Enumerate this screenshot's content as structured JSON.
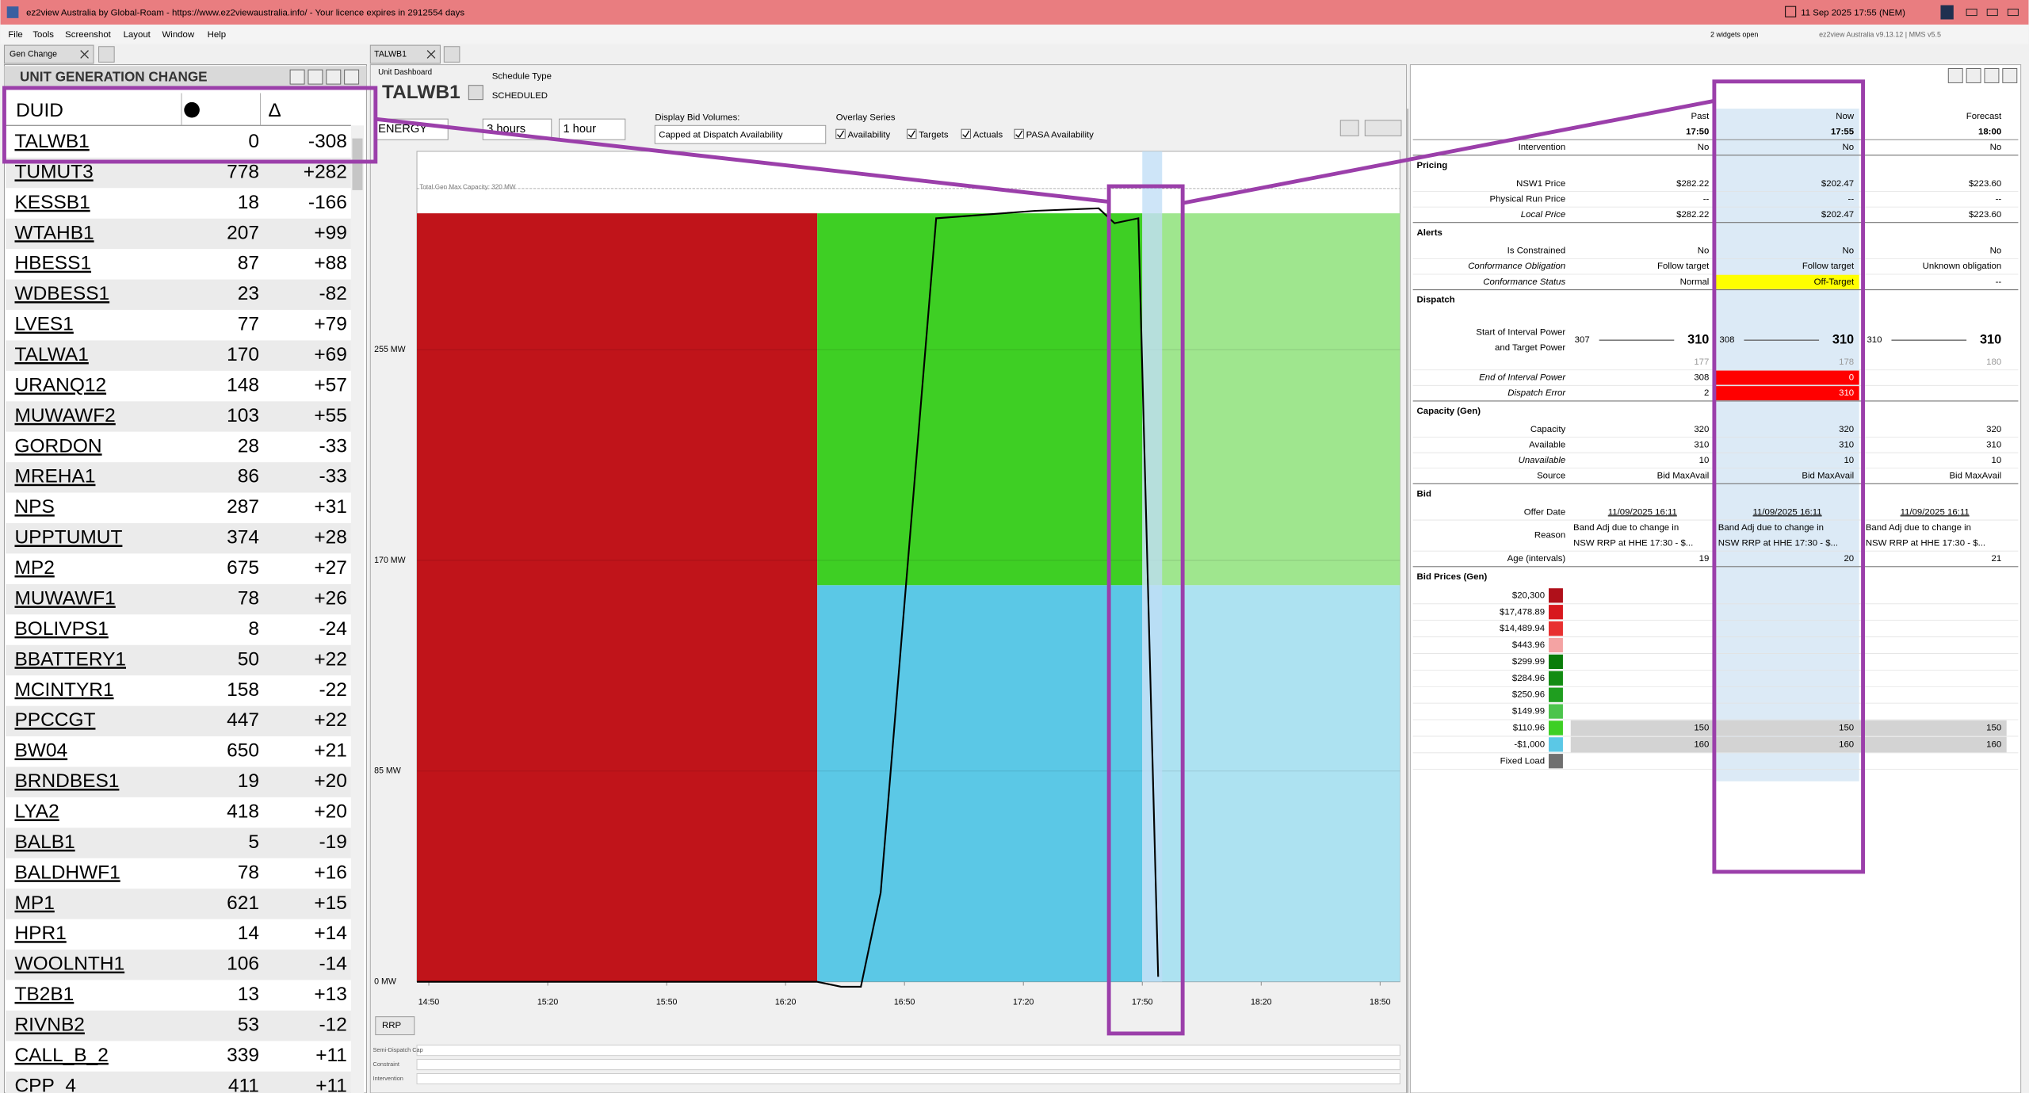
{
  "title_bar": {
    "title": "ez2view Australia by Global-Roam - https://www.ez2viewaustralia.info/ - Your licence expires in 2912554 days",
    "datetime": "11 Sep 2025 17:55 (NEM)"
  },
  "menu": [
    "File",
    "Tools",
    "Screenshot",
    "Layout",
    "Window",
    "Help"
  ],
  "status": {
    "widgets": "2 widgets open",
    "version": "ez2view Australia v9.13.12 | MMS v5.5"
  },
  "tabs": {
    "left": "Gen Change",
    "middle": "TALWB1"
  },
  "gen_change": {
    "title": "UNIT GENERATION CHANGE",
    "headers": [
      "DUID",
      "Δ"
    ],
    "rows": [
      [
        "TALWB1",
        0,
        "-308"
      ],
      [
        "TUMUT3",
        778,
        "+282"
      ],
      [
        "KESSB1",
        18,
        "-166"
      ],
      [
        "WTAHB1",
        207,
        "+99"
      ],
      [
        "HBESS1",
        87,
        "+88"
      ],
      [
        "WDBESS1",
        23,
        "-82"
      ],
      [
        "LVES1",
        77,
        "+79"
      ],
      [
        "TALWA1",
        170,
        "+69"
      ],
      [
        "URANQ12",
        148,
        "+57"
      ],
      [
        "MUWAWF2",
        103,
        "+55"
      ],
      [
        "GORDON",
        28,
        "-33"
      ],
      [
        "MREHA1",
        86,
        "-33"
      ],
      [
        "NPS",
        287,
        "+31"
      ],
      [
        "UPPTUMUT",
        374,
        "+28"
      ],
      [
        "MP2",
        675,
        "+27"
      ],
      [
        "MUWAWF1",
        78,
        "+26"
      ],
      [
        "BOLIVPS1",
        8,
        "-24"
      ],
      [
        "BBATTERY1",
        50,
        "+22"
      ],
      [
        "MCINTYR1",
        158,
        "-22"
      ],
      [
        "PPCCGT",
        447,
        "+22"
      ],
      [
        "BW04",
        650,
        "+21"
      ],
      [
        "BRNDBES1",
        19,
        "+20"
      ],
      [
        "LYA2",
        418,
        "+20"
      ],
      [
        "BALB1",
        5,
        "-19"
      ],
      [
        "BALDHWF1",
        78,
        "+16"
      ],
      [
        "MP1",
        621,
        "+15"
      ],
      [
        "HPR1",
        14,
        "+14"
      ],
      [
        "WOOLNTH1",
        106,
        "-14"
      ],
      [
        "TB2B1",
        13,
        "+13"
      ],
      [
        "RIVNB2",
        53,
        "-12"
      ],
      [
        "CALL_B_2",
        339,
        "+11"
      ],
      [
        "CPP_4",
        411,
        "+11"
      ]
    ]
  },
  "dashboard": {
    "label": "Unit Dashboard",
    "duid": "TALWB1",
    "schedule_type_label": "Schedule Type",
    "schedule_type": "SCHEDULED",
    "controls": {
      "market": "ENERGY",
      "range": "3 hours",
      "step": "1 hour",
      "bid_volumes_label": "Display Bid Volumes:",
      "bid_volumes": "Capped at Dispatch Availability",
      "overlay_label": "Overlay Series",
      "overlays": [
        "Availability",
        "Targets",
        "Actuals",
        "PASA Availability"
      ]
    },
    "rrp_button": "RRP",
    "lanes": [
      "Semi-Dispatch Cap",
      "Constraint",
      "Intervention"
    ]
  },
  "chart": {
    "type": "area",
    "title": "Total Gen Max Capacity: 320 MW",
    "capacity": 320,
    "ylim": [
      0,
      335
    ],
    "yticks": [
      {
        "value": 0,
        "label": "0 MW"
      },
      {
        "value": 85,
        "label": "85 MW"
      },
      {
        "value": 170,
        "label": "170 MW"
      },
      {
        "value": 255,
        "label": "255 MW"
      }
    ],
    "xlim": [
      887,
      1135
    ],
    "xticks": [
      {
        "value": 890,
        "label": "14:50"
      },
      {
        "value": 920,
        "label": "15:20"
      },
      {
        "value": 950,
        "label": "15:50"
      },
      {
        "value": 980,
        "label": "16:20"
      },
      {
        "value": 1010,
        "label": "16:50"
      },
      {
        "value": 1040,
        "label": "17:20"
      },
      {
        "value": 1070,
        "label": "17:50"
      },
      {
        "value": 1100,
        "label": "18:20"
      },
      {
        "value": 1130,
        "label": "18:50"
      }
    ],
    "grid": true,
    "stacks": [
      {
        "x": [
          887,
          988
        ],
        "segments": [
          {
            "value": 310,
            "color": "#c0141a"
          }
        ]
      },
      {
        "x": [
          988,
          1070
        ],
        "segments": [
          {
            "value": 160,
            "color": "#5bc8e6"
          },
          {
            "value": 150,
            "color": "#3ecf24"
          }
        ]
      },
      {
        "x": [
          1070,
          1135
        ],
        "segments": [
          {
            "value": 160,
            "color": "#ade2f1"
          },
          {
            "value": 150,
            "color": "#9fe68e"
          }
        ]
      }
    ],
    "current_interval": [
      1070,
      1075
    ],
    "actuals": {
      "color": "#000000",
      "x": [
        887,
        988,
        994,
        999,
        1004,
        1018,
        1043,
        1059,
        1063,
        1069,
        1074
      ],
      "values": [
        0,
        0,
        -2,
        -2,
        36,
        308,
        311,
        312,
        306,
        308,
        2
      ]
    }
  },
  "unit_table": {
    "columns": [
      "Past",
      "Now",
      "Forecast"
    ],
    "times": [
      "17:50",
      "17:55",
      "18:00"
    ],
    "rows": [
      {
        "label": "Intervention",
        "cells": [
          "No",
          "No",
          "No"
        ]
      },
      {
        "section": "Pricing"
      },
      {
        "label": "NSW1 Price",
        "cells": [
          "$282.22",
          "$202.47",
          "$223.60"
        ]
      },
      {
        "label": "Physical Run Price",
        "cells": [
          "--",
          "--",
          "--"
        ]
      },
      {
        "label": "Local Price",
        "italic": true,
        "cells": [
          "$282.22",
          "$202.47",
          "$223.60"
        ]
      },
      {
        "section": "Alerts"
      },
      {
        "label": "Is Constrained",
        "cells": [
          "No",
          "No",
          "No"
        ]
      },
      {
        "label": "Conformance Obligation",
        "italic": true,
        "cells": [
          "Follow target",
          "Follow target",
          "Unknown obligation"
        ]
      },
      {
        "label": "Conformance Status",
        "italic": true,
        "cells": [
          "Normal",
          "Off-Target",
          "--"
        ],
        "cell_colors": [
          null,
          "#ffff00",
          null
        ]
      },
      {
        "section": "Dispatch"
      },
      {
        "label": [
          "Start of Interval Power",
          "and Target Power"
        ],
        "power": [
          {
            "start": 307,
            "target": 310,
            "initial": 177
          },
          {
            "start": 308,
            "target": 310,
            "initial": 178
          },
          {
            "start": 310,
            "target": 310,
            "initial": 180
          }
        ]
      },
      {
        "label": "End of Interval Power",
        "italic": true,
        "cells": [
          308,
          0,
          null
        ],
        "cell_colors": [
          null,
          "#ff0000",
          null
        ]
      },
      {
        "label": "Dispatch Error",
        "italic": true,
        "cells": [
          2,
          310,
          null
        ],
        "cell_colors": [
          null,
          "#ff0000",
          null
        ]
      },
      {
        "section": "Capacity (Gen)"
      },
      {
        "label": "Capacity",
        "cells": [
          320,
          320,
          320
        ]
      },
      {
        "label": "Available",
        "cells": [
          310,
          310,
          310
        ]
      },
      {
        "label": "Unavailable",
        "italic": true,
        "cells": [
          10,
          10,
          10
        ]
      },
      {
        "label": "Source",
        "cells": [
          "Bid MaxAvail",
          "Bid MaxAvail",
          "Bid MaxAvail"
        ]
      },
      {
        "section": "Bid"
      },
      {
        "label": "Offer Date",
        "underline": true,
        "cells": [
          "11/09/2025 16:11",
          "11/09/2025 16:11",
          "11/09/2025 16:11"
        ]
      },
      {
        "label": "Reason",
        "lines": [
          [
            "Band Adj due to change in",
            "NSW RRP at HHE 17:30 - $..."
          ],
          [
            "Band Adj due to change in",
            "NSW RRP at HHE 17:30 - $..."
          ],
          [
            "Band Adj due to change in",
            "NSW RRP at HHE 17:30 - $..."
          ]
        ]
      },
      {
        "label": "Age (intervals)",
        "cells": [
          19,
          20,
          21
        ]
      },
      {
        "section": "Bid Prices (Gen)"
      }
    ],
    "bid_bands": [
      {
        "price": "$20,300",
        "color": "#b0101a"
      },
      {
        "price": "$17,478.89",
        "color": "#d8181e"
      },
      {
        "price": "$14,489.94",
        "color": "#e83030"
      },
      {
        "price": "$443.96",
        "color": "#f4a3a3"
      },
      {
        "price": "$299.99",
        "color": "#0a7d0a"
      },
      {
        "price": "$284.96",
        "color": "#138c13"
      },
      {
        "price": "$250.96",
        "color": "#1f9e1f"
      },
      {
        "price": "$149.99",
        "color": "#4cc44c"
      },
      {
        "price": "$110.96",
        "color": "#3ecf24",
        "cells": [
          150,
          150,
          150
        ]
      },
      {
        "price": "-$1,000",
        "color": "#5bc8e6",
        "cells": [
          160,
          160,
          160
        ]
      },
      {
        "price": "Fixed Load",
        "color": "#707070"
      }
    ]
  }
}
